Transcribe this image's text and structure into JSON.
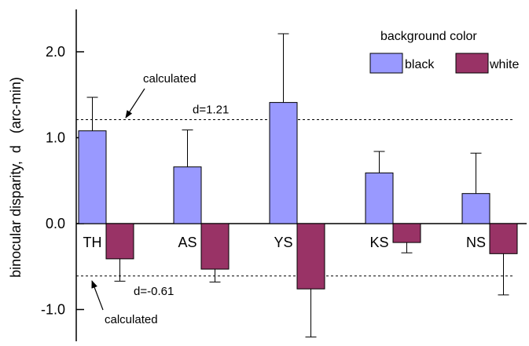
{
  "chart_data": {
    "type": "bar",
    "categories": [
      "TH",
      "AS",
      "YS",
      "KS",
      "NS"
    ],
    "series": [
      {
        "name": "black",
        "color": "#9999ff",
        "values": [
          1.08,
          0.66,
          1.41,
          0.59,
          0.35
        ],
        "errors": [
          0.39,
          0.43,
          0.8,
          0.25,
          0.47
        ]
      },
      {
        "name": "white",
        "color": "#993366",
        "values": [
          -0.41,
          -0.53,
          -0.76,
          -0.22,
          -0.35
        ],
        "errors": [
          0.26,
          0.15,
          0.56,
          0.12,
          0.48
        ]
      }
    ],
    "ylabel": "binocular disparity,  d   (arc-min)",
    "ylim": [
      -1.42,
      2.47
    ],
    "yticks": [
      -1.0,
      0.0,
      1.0,
      2.0
    ],
    "ytick_labels": [
      "-1.0",
      "0.0",
      "1.0",
      "2.0"
    ],
    "legend": {
      "title": "background color",
      "position": "top-right"
    },
    "reference_lines": [
      {
        "value": 1.21,
        "label": "d=1.21",
        "annotation": "calculated"
      },
      {
        "value": -0.61,
        "label": "d=-0.61",
        "annotation": "calculated"
      }
    ],
    "grid": false
  }
}
